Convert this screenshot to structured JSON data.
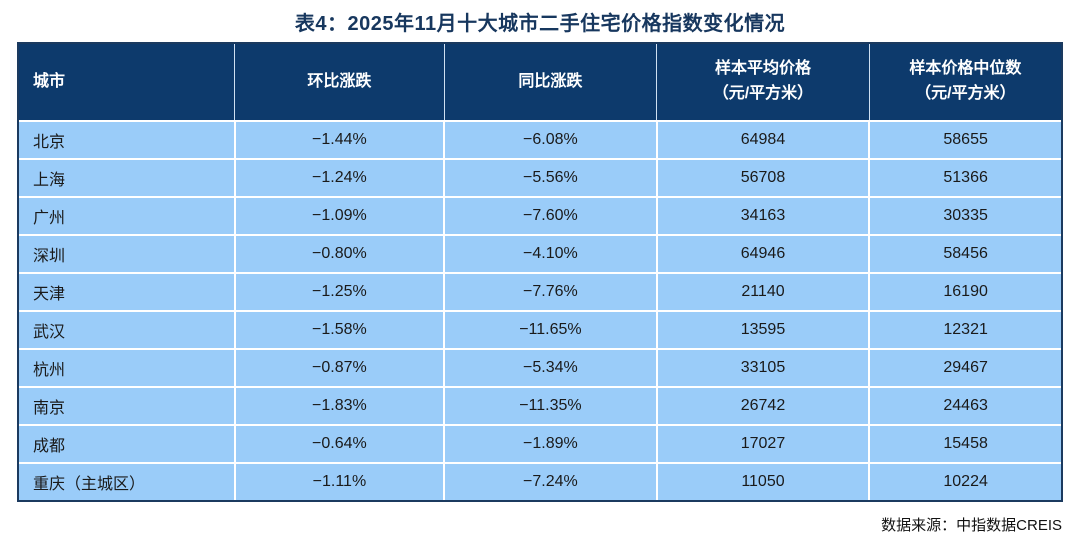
{
  "title": "表4：2025年11月十大城市二手住宅价格指数变化情况",
  "source_note": "数据来源：中指数据CREIS",
  "colors": {
    "header_bg": "#0D3A6C",
    "row_bg": "#9ACCF9",
    "title_text": "#17375E",
    "header_text": "#FFFFFF",
    "cell_text": "#1A1A1A",
    "table_border": "#1B3A5F",
    "grid_line": "#FFFFFF"
  },
  "table": {
    "columns": [
      {
        "label": "城市",
        "align": "left"
      },
      {
        "label": "环比涨跌",
        "align": "center"
      },
      {
        "label": "同比涨跌",
        "align": "center"
      },
      {
        "label": "样本平均价格\n（元/平方米）",
        "align": "center"
      },
      {
        "label": "样本价格中位数\n（元/平方米）",
        "align": "center"
      }
    ],
    "rows": [
      [
        "北京",
        "−1.44%",
        "−6.08%",
        "64984",
        "58655"
      ],
      [
        "上海",
        "−1.24%",
        "−5.56%",
        "56708",
        "51366"
      ],
      [
        "广州",
        "−1.09%",
        "−7.60%",
        "34163",
        "30335"
      ],
      [
        "深圳",
        "−0.80%",
        "−4.10%",
        "64946",
        "58456"
      ],
      [
        "天津",
        "−1.25%",
        "−7.76%",
        "21140",
        "16190"
      ],
      [
        "武汉",
        "−1.58%",
        "−11.65%",
        "13595",
        "12321"
      ],
      [
        "杭州",
        "−0.87%",
        "−5.34%",
        "33105",
        "29467"
      ],
      [
        "南京",
        "−1.83%",
        "−11.35%",
        "26742",
        "24463"
      ],
      [
        "成都",
        "−0.64%",
        "−1.89%",
        "17027",
        "15458"
      ],
      [
        "重庆（主城区）",
        "−1.11%",
        "−7.24%",
        "11050",
        "10224"
      ]
    ]
  },
  "chart_data": {
    "type": "table",
    "title": "表4：2025年11月十大城市二手住宅价格指数变化情况",
    "columns": [
      "城市",
      "环比涨跌",
      "同比涨跌",
      "样本平均价格（元/平方米）",
      "样本价格中位数（元/平方米）"
    ],
    "rows": [
      {
        "city": "北京",
        "mom_change_pct": -1.44,
        "yoy_change_pct": -6.08,
        "sample_avg_price": 64984,
        "sample_median_price": 58655
      },
      {
        "city": "上海",
        "mom_change_pct": -1.24,
        "yoy_change_pct": -5.56,
        "sample_avg_price": 56708,
        "sample_median_price": 51366
      },
      {
        "city": "广州",
        "mom_change_pct": -1.09,
        "yoy_change_pct": -7.6,
        "sample_avg_price": 34163,
        "sample_median_price": 30335
      },
      {
        "city": "深圳",
        "mom_change_pct": -0.8,
        "yoy_change_pct": -4.1,
        "sample_avg_price": 64946,
        "sample_median_price": 58456
      },
      {
        "city": "天津",
        "mom_change_pct": -1.25,
        "yoy_change_pct": -7.76,
        "sample_avg_price": 21140,
        "sample_median_price": 16190
      },
      {
        "city": "武汉",
        "mom_change_pct": -1.58,
        "yoy_change_pct": -11.65,
        "sample_avg_price": 13595,
        "sample_median_price": 12321
      },
      {
        "city": "杭州",
        "mom_change_pct": -0.87,
        "yoy_change_pct": -5.34,
        "sample_avg_price": 33105,
        "sample_median_price": 29467
      },
      {
        "city": "南京",
        "mom_change_pct": -1.83,
        "yoy_change_pct": -11.35,
        "sample_avg_price": 26742,
        "sample_median_price": 24463
      },
      {
        "city": "成都",
        "mom_change_pct": -0.64,
        "yoy_change_pct": -1.89,
        "sample_avg_price": 17027,
        "sample_median_price": 15458
      },
      {
        "city": "重庆（主城区）",
        "mom_change_pct": -1.11,
        "yoy_change_pct": -7.24,
        "sample_avg_price": 11050,
        "sample_median_price": 10224
      }
    ],
    "source": "数据来源：中指数据CREIS"
  }
}
